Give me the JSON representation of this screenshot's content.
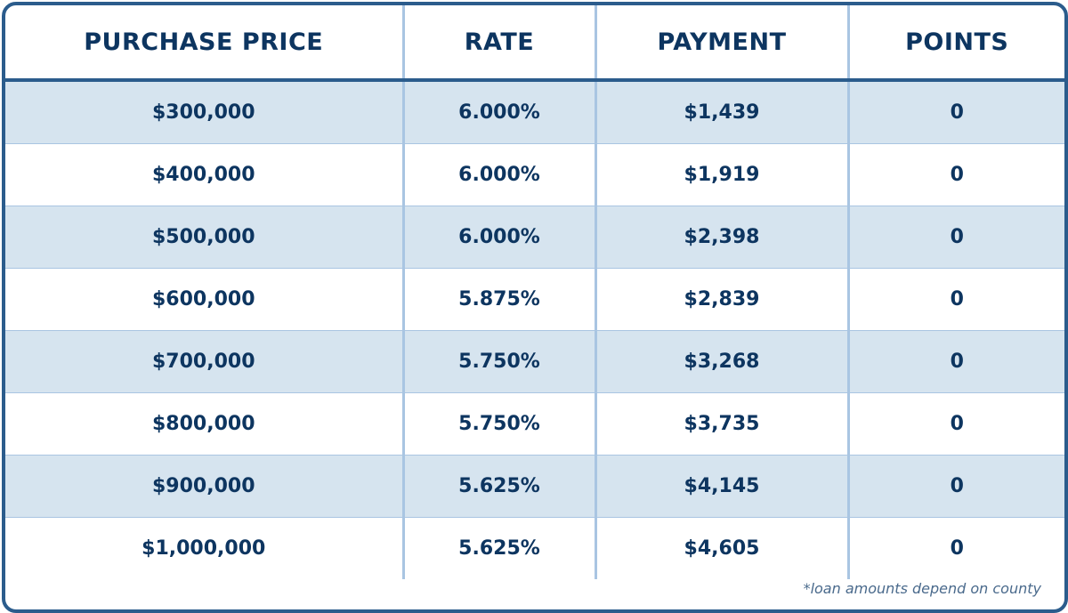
{
  "table": {
    "columns": [
      "PURCHASE PRICE",
      "RATE",
      "PAYMENT",
      "POINTS"
    ],
    "rows": [
      [
        "$300,000",
        "6.000%",
        "$1,439",
        "0"
      ],
      [
        "$400,000",
        "6.000%",
        "$1,919",
        "0"
      ],
      [
        "$500,000",
        "6.000%",
        "$2,398",
        "0"
      ],
      [
        "$600,000",
        "5.875%",
        "$2,839",
        "0"
      ],
      [
        "$700,000",
        "5.750%",
        "$3,268",
        "0"
      ],
      [
        "$800,000",
        "5.750%",
        "$3,735",
        "0"
      ],
      [
        "$900,000",
        "5.625%",
        "$4,145",
        "0"
      ],
      [
        "$1,000,000",
        "5.625%",
        "$4,605",
        "0"
      ]
    ]
  },
  "footnote": "*loan amounts depend on county"
}
